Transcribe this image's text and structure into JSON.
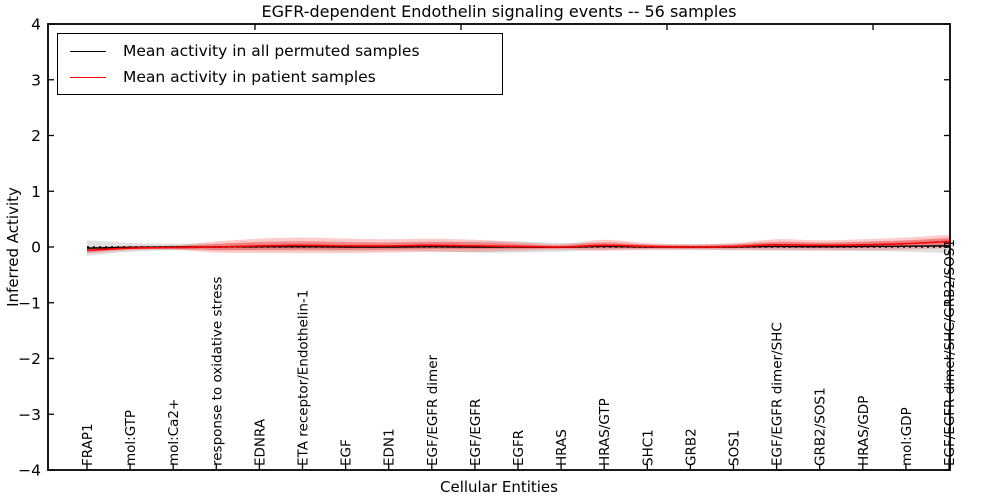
{
  "figure": {
    "title": "EGFR-dependent Endothelin signaling events -- 56 samples",
    "xlabel": "Cellular Entities",
    "ylabel": "Inferred Activity",
    "background_color": "#ffffff",
    "axis_color": "#000000"
  },
  "legend": {
    "position": "upper left",
    "items": [
      {
        "label": "Mean activity in all permuted samples",
        "color": "#000000"
      },
      {
        "label": "Mean activity in patient samples",
        "color": "#ff0000"
      }
    ]
  },
  "chart_data": {
    "type": "line",
    "title": "EGFR-dependent Endothelin signaling events -- 56 samples",
    "xlabel": "Cellular Entities",
    "ylabel": "Inferred Activity",
    "ylim": [
      -4,
      4
    ],
    "yticks": [
      4,
      3,
      2,
      1,
      0,
      -1,
      -2,
      -3,
      -4
    ],
    "grid": false,
    "legend_position": "upper left",
    "sample_count": 56,
    "categories": [
      "FRAP1",
      "mol:GTP",
      "mol:Ca2+",
      "response to oxidative stress",
      "EDNRA",
      "ETA receptor/Endothelin-1",
      "EGF",
      "EDN1",
      "EGF/EGFR dimer",
      "EGF/EGFR",
      "EGFR",
      "HRAS",
      "HRAS/GTP",
      "SHC1",
      "GRB2",
      "SOS1",
      "EGF/EGFR dimer/SHC",
      "GRB2/SOS1",
      "HRAS/GDP",
      "mol:GDP",
      "EGF/EGFR dimer/SHC/GRB2/SOS1"
    ],
    "series": [
      {
        "name": "Mean activity in all permuted samples",
        "color": "#000000",
        "values": [
          -0.02,
          -0.005,
          0,
          0,
          0.005,
          0.005,
          0,
          0,
          0.005,
          0,
          0,
          -0.005,
          0.01,
          0,
          0,
          0,
          0.01,
          0.005,
          0.01,
          0.015,
          0.02
        ]
      },
      {
        "name": "Mean activity in patient samples",
        "color": "#ff0000",
        "values": [
          -0.06,
          -0.02,
          -0.01,
          0,
          0.02,
          0.03,
          0.02,
          0.02,
          0.03,
          0.02,
          0.01,
          0,
          0.03,
          0.01,
          0,
          0.01,
          0.04,
          0.03,
          0.04,
          0.06,
          0.1
        ]
      }
    ],
    "bands": [
      {
        "name": "permuted-std-band",
        "series": 0,
        "color": "#323232",
        "opacity": 0.15,
        "half_width": [
          0.14,
          0.08,
          0.06,
          0.06,
          0.07,
          0.07,
          0.07,
          0.07,
          0.08,
          0.1,
          0.1,
          0.08,
          0.06,
          0.05,
          0.05,
          0.06,
          0.07,
          0.07,
          0.08,
          0.1,
          0.13
        ]
      },
      {
        "name": "patient-std-band",
        "series": 1,
        "color": "#ff0000",
        "opacity": 0.2,
        "half_width": [
          0.06,
          0.04,
          0.04,
          0.1,
          0.13,
          0.14,
          0.13,
          0.12,
          0.12,
          0.11,
          0.08,
          0.05,
          0.1,
          0.06,
          0.05,
          0.06,
          0.1,
          0.09,
          0.1,
          0.11,
          0.12
        ]
      }
    ],
    "zero_line": {
      "value": 0,
      "style": "dotted",
      "color": "#000000"
    }
  }
}
